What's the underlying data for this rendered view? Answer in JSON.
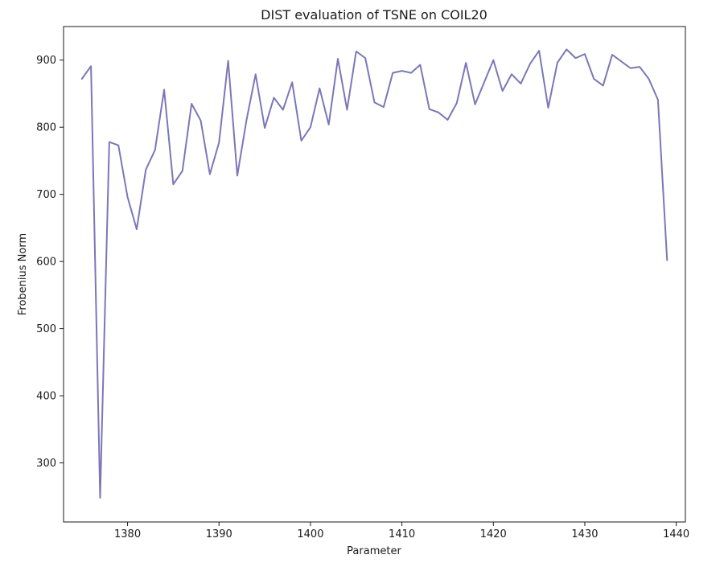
{
  "chart_data": {
    "type": "line",
    "title": "DIST evaluation of TSNE on COIL20",
    "xlabel": "Parameter",
    "ylabel": "Frobenius Norm",
    "xlim": [
      1373,
      1441
    ],
    "ylim": [
      212,
      950
    ],
    "xticks": [
      1380,
      1390,
      1400,
      1410,
      1420,
      1430,
      1440
    ],
    "yticks": [
      300,
      400,
      500,
      600,
      700,
      800,
      900
    ],
    "grid": false,
    "legend": "none",
    "line_color": "#7b77b8",
    "series": [
      {
        "x": [
          1375,
          1376,
          1377,
          1378,
          1379,
          1380,
          1381,
          1382,
          1383,
          1384,
          1385,
          1386,
          1387,
          1388,
          1389,
          1390,
          1391,
          1392,
          1393,
          1394,
          1395,
          1396,
          1397,
          1398,
          1399,
          1400,
          1401,
          1402,
          1403,
          1404,
          1405,
          1406,
          1407,
          1408,
          1409,
          1410,
          1411,
          1412,
          1413,
          1414,
          1415,
          1416,
          1417,
          1418,
          1419,
          1420,
          1421,
          1422,
          1423,
          1424,
          1425,
          1426,
          1427,
          1428,
          1429,
          1430,
          1431,
          1432,
          1433,
          1434,
          1435,
          1436,
          1437,
          1438,
          1439
        ],
        "values": [
          872,
          891,
          248,
          778,
          773,
          696,
          648,
          737,
          766,
          856,
          715,
          735,
          835,
          810,
          730,
          777,
          899,
          728,
          810,
          879,
          799,
          844,
          826,
          867,
          780,
          800,
          858,
          804,
          902,
          826,
          913,
          903,
          837,
          830,
          881,
          884,
          881,
          893,
          827,
          822,
          811,
          836,
          896,
          834,
          867,
          900,
          854,
          879,
          865,
          894,
          914,
          829,
          896,
          916,
          903,
          909,
          872,
          862,
          908,
          898,
          888,
          890,
          872,
          841,
          602
        ]
      }
    ]
  }
}
